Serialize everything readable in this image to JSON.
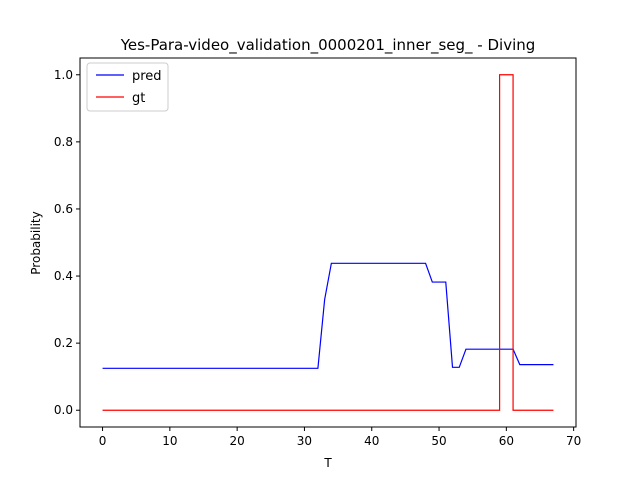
{
  "chart_data": {
    "type": "line",
    "title": "Yes-Para-video_validation_0000201_inner_seg_ - Diving",
    "xlabel": "T",
    "ylabel": "Probability",
    "xlim": [
      -3.35,
      70.35
    ],
    "ylim": [
      -0.05,
      1.05
    ],
    "xticks": [
      0,
      10,
      20,
      30,
      40,
      50,
      60,
      70
    ],
    "yticks": [
      0.0,
      0.2,
      0.4,
      0.6,
      0.8,
      1.0
    ],
    "xtick_labels": [
      "0",
      "10",
      "20",
      "30",
      "40",
      "50",
      "60",
      "70"
    ],
    "ytick_labels": [
      "0.0",
      "0.2",
      "0.4",
      "0.6",
      "0.8",
      "1.0"
    ],
    "legend": {
      "position": "upper-left"
    },
    "series": [
      {
        "name": "pred",
        "color": "#0000ff",
        "step": false,
        "x": [
          0,
          32,
          33,
          34,
          48,
          49,
          51,
          52,
          53,
          54,
          61,
          62,
          67
        ],
        "y": [
          0.125,
          0.125,
          0.33,
          0.438,
          0.438,
          0.382,
          0.382,
          0.128,
          0.128,
          0.182,
          0.182,
          0.136,
          0.136
        ]
      },
      {
        "name": "gt",
        "color": "#ff0000",
        "step": true,
        "x": [
          0,
          59,
          59,
          61,
          61,
          67
        ],
        "y": [
          0.0,
          0.0,
          1.0,
          1.0,
          0.0,
          0.0
        ]
      }
    ]
  }
}
